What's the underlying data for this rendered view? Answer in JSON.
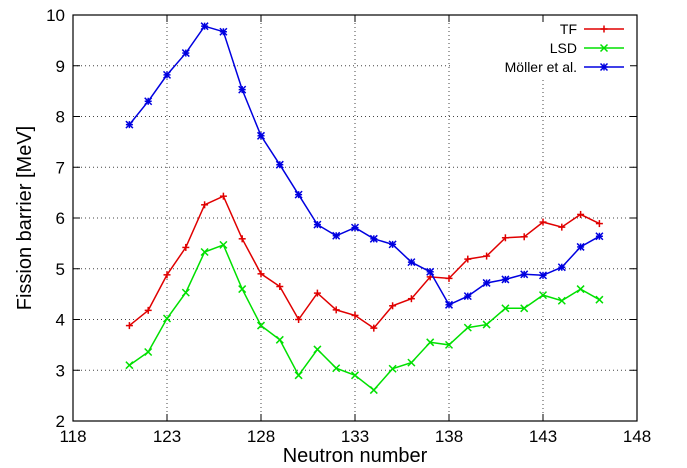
{
  "chart_data": {
    "type": "line",
    "title": "",
    "xlabel": "Neutron number",
    "ylabel": "Fission barrier [MeV]",
    "xlim": [
      118,
      148
    ],
    "ylim": [
      2,
      10
    ],
    "xticks": [
      118,
      123,
      128,
      133,
      138,
      143,
      148
    ],
    "yticks": [
      2,
      3,
      4,
      5,
      6,
      7,
      8,
      9,
      10
    ],
    "grid": "dotted",
    "legend_position": "top-right",
    "x": [
      121,
      122,
      123,
      124,
      125,
      126,
      127,
      128,
      129,
      130,
      131,
      132,
      133,
      134,
      135,
      136,
      137,
      138,
      139,
      140,
      141,
      142,
      143,
      144,
      145,
      146
    ],
    "series": [
      {
        "name": "TF",
        "color": "#e00000",
        "marker": "plus",
        "values": [
          3.88,
          4.18,
          4.88,
          5.42,
          6.26,
          6.43,
          5.59,
          4.9,
          4.65,
          4.0,
          4.52,
          4.19,
          4.08,
          3.83,
          4.27,
          4.41,
          4.84,
          4.81,
          5.19,
          5.25,
          5.61,
          5.63,
          5.92,
          5.82,
          6.07,
          5.89
        ]
      },
      {
        "name": "LSD",
        "color": "#00e000",
        "marker": "x",
        "values": [
          3.1,
          3.36,
          4.02,
          4.53,
          5.33,
          5.47,
          4.6,
          3.88,
          3.6,
          2.9,
          3.41,
          3.04,
          2.9,
          2.61,
          3.03,
          3.15,
          3.55,
          3.5,
          3.84,
          3.9,
          4.22,
          4.22,
          4.48,
          4.37,
          4.6,
          4.39
        ]
      },
      {
        "name": "Möller et al.",
        "color": "#0000e0",
        "marker": "asterisk",
        "values": [
          7.84,
          8.3,
          8.82,
          9.25,
          9.78,
          9.67,
          8.53,
          7.62,
          7.05,
          6.46,
          5.87,
          5.65,
          5.81,
          5.59,
          5.48,
          5.13,
          4.94,
          4.29,
          4.46,
          4.72,
          4.79,
          4.89,
          4.87,
          5.03,
          5.43,
          5.64
        ]
      }
    ]
  }
}
